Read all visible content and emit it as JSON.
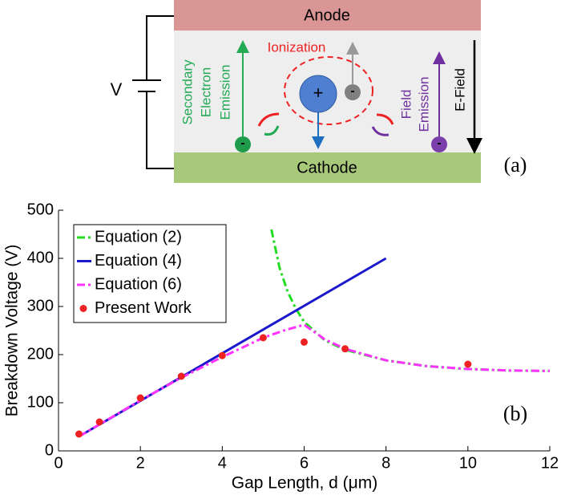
{
  "diagram": {
    "anode": "Anode",
    "cathode": "Cathode",
    "voltage": "V",
    "ionization": "Ionization",
    "secondary_emission": [
      "Secondary",
      "Electron",
      "Emission"
    ],
    "field_emission": [
      "Field",
      "Emission"
    ],
    "e_field": "E-Field",
    "ion_sign": "+",
    "electron_signs": [
      "-",
      "-",
      "-"
    ],
    "panel_label": "(a)"
  },
  "chart_data": {
    "type": "line",
    "panel_label": "(b)",
    "x_label": "Gap Length, d (μm)",
    "y_label": "Breakdown Voltage (V)",
    "xlim": [
      0,
      12
    ],
    "ylim": [
      0,
      500
    ],
    "xticks": [
      0,
      2,
      4,
      6,
      8,
      10,
      12
    ],
    "yticks": [
      0,
      100,
      200,
      300,
      400,
      500
    ],
    "legend": "upper left",
    "series": [
      {
        "name": "Equation (2)",
        "color": "#22dd22",
        "style": "dashdot",
        "x": [
          5.2,
          5.4,
          5.6,
          5.8,
          6,
          6.5,
          7,
          8,
          9,
          10,
          11,
          12
        ],
        "values": [
          460,
          380,
          330,
          295,
          268,
          230,
          210,
          188,
          176,
          170,
          167,
          166
        ]
      },
      {
        "name": "Equation (4)",
        "color": "#1a1acc",
        "style": "solid",
        "x": [
          0.5,
          8
        ],
        "values": [
          30,
          400
        ]
      },
      {
        "name": "Equation (6)",
        "color": "#ff33ff",
        "style": "dashdot",
        "x": [
          0.5,
          1,
          2,
          3,
          4,
          5,
          5.5,
          6,
          6.5,
          7,
          8,
          9,
          10,
          11,
          12
        ],
        "values": [
          30,
          55,
          105,
          152,
          195,
          235,
          250,
          262,
          232,
          212,
          188,
          176,
          170,
          167,
          166
        ]
      },
      {
        "name": "Present Work",
        "color": "#ee2222",
        "style": "points",
        "x": [
          0.5,
          1,
          2,
          3,
          4,
          5,
          6,
          7,
          10
        ],
        "values": [
          35,
          60,
          110,
          155,
          198,
          235,
          226,
          212,
          180
        ]
      }
    ]
  }
}
